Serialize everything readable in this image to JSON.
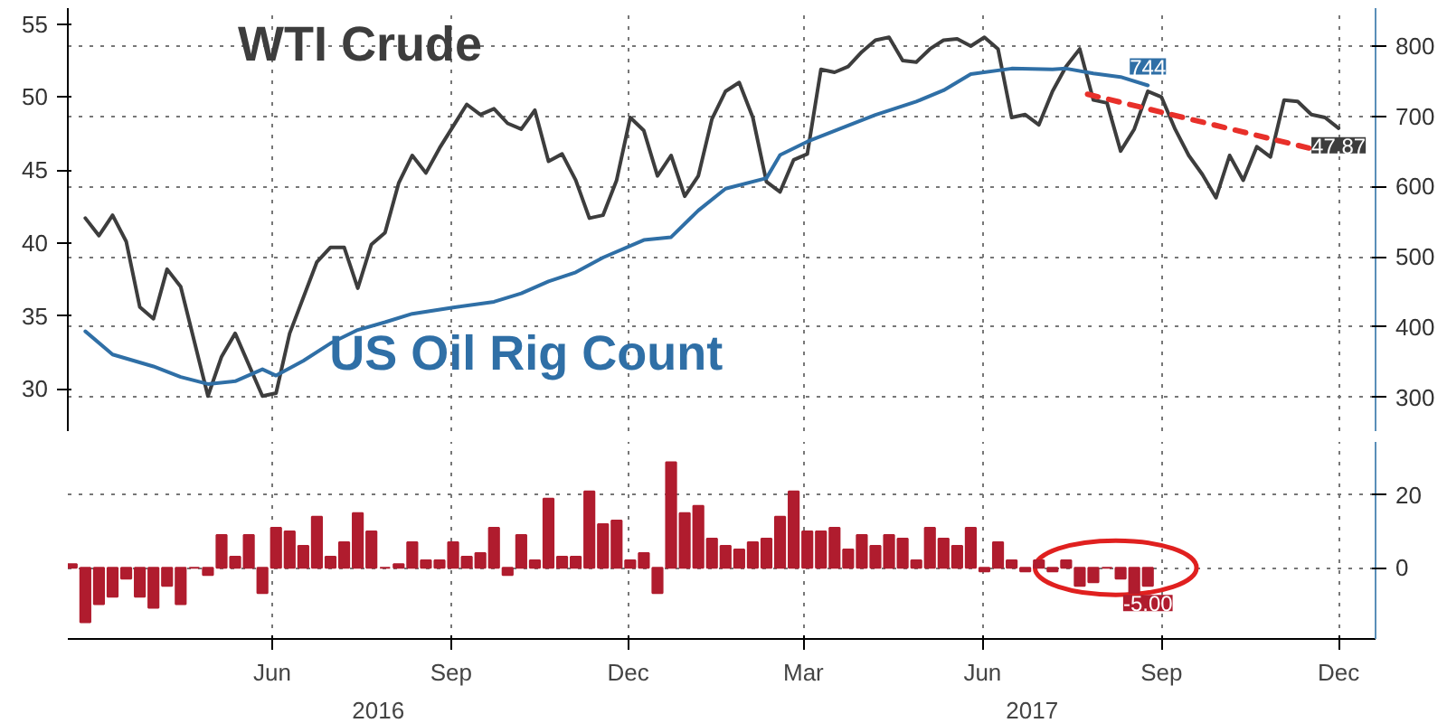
{
  "chart_data": [
    {
      "type": "line",
      "xlim": [
        "2016-02-17",
        "2017-12-20"
      ],
      "xticks": [
        "2016-06-01",
        "2016-09-01",
        "2016-12-01",
        "2017-03-01",
        "2017-06-01",
        "2017-09-01",
        "2017-12-01"
      ],
      "ylim": [
        27.1,
        56.1
      ],
      "yticks": [
        30,
        35,
        40,
        45,
        50,
        55
      ],
      "y2lim": [
        252,
        854
      ],
      "y2ticks": [
        300,
        400,
        500,
        600,
        700,
        800
      ],
      "tick_labels": "y",
      "series": [
        {
          "name": "WTI Crude",
          "color": "#3d3d3d",
          "x": [
            "2016-02-26",
            "2016-03-04",
            "2016-03-11",
            "2016-03-18",
            "2016-03-25",
            "2016-04-01",
            "2016-04-08",
            "2016-04-15",
            "2016-04-29",
            "2016-05-06",
            "2016-05-13",
            "2016-05-27",
            "2016-06-03",
            "2016-06-10",
            "2016-06-24",
            "2016-07-01",
            "2016-07-08",
            "2016-07-15",
            "2016-07-22",
            "2016-07-29",
            "2016-08-05",
            "2016-08-12",
            "2016-08-19",
            "2016-08-26",
            "2016-09-09",
            "2016-09-16",
            "2016-09-23",
            "2016-09-30",
            "2016-10-07",
            "2016-10-14",
            "2016-10-21",
            "2016-10-28",
            "2016-11-04",
            "2016-11-11",
            "2016-11-18",
            "2016-11-25",
            "2016-12-02",
            "2016-12-09",
            "2016-12-16",
            "2016-12-23",
            "2016-12-30",
            "2017-01-06",
            "2017-01-13",
            "2017-01-20",
            "2017-01-27",
            "2017-02-03",
            "2017-02-10",
            "2017-02-17",
            "2017-02-24",
            "2017-03-03",
            "2017-03-10",
            "2017-03-17",
            "2017-03-24",
            "2017-03-31",
            "2017-04-07",
            "2017-04-14",
            "2017-04-21",
            "2017-04-28",
            "2017-05-05",
            "2017-05-12",
            "2017-05-19",
            "2017-05-26",
            "2017-06-02",
            "2017-06-09",
            "2017-06-16",
            "2017-06-23",
            "2017-06-30",
            "2017-07-07",
            "2017-07-14",
            "2017-07-21",
            "2017-07-28",
            "2017-08-04",
            "2017-08-11",
            "2017-08-18",
            "2017-08-25",
            "2017-09-01",
            "2017-09-08",
            "2017-09-15",
            "2017-09-22",
            "2017-09-29",
            "2017-10-06",
            "2017-10-13",
            "2017-10-20",
            "2017-10-27",
            "2017-11-03",
            "2017-11-10",
            "2017-11-17",
            "2017-11-24",
            "2017-12-01"
          ],
          "values": [
            41.7,
            40.5,
            41.9,
            40.1,
            35.6,
            34.8,
            38.2,
            37.0,
            29.5,
            32.2,
            33.8,
            29.5,
            29.7,
            33.8,
            38.7,
            39.7,
            39.7,
            36.9,
            39.9,
            40.7,
            44.1,
            46.0,
            44.8,
            46.5,
            49.5,
            48.8,
            49.2,
            48.2,
            47.8,
            49.1,
            45.6,
            46.1,
            44.3,
            41.7,
            41.9,
            44.3,
            48.6,
            47.7,
            44.6,
            46.0,
            43.2,
            44.6,
            48.5,
            50.4,
            51.0,
            48.6,
            44.2,
            43.5,
            45.7,
            46.1,
            51.9,
            51.7,
            52.1,
            53.1,
            53.9,
            54.1,
            52.5,
            52.4,
            53.3,
            53.9,
            54.0,
            53.5,
            54.1,
            53.3,
            48.6,
            48.8,
            48.1,
            50.4,
            52.1,
            53.3,
            49.8,
            49.6,
            46.3,
            47.8,
            50.4,
            50.0,
            47.8,
            46.0,
            44.7,
            43.1,
            46.0,
            44.3,
            46.6,
            45.9,
            49.8,
            49.7,
            48.8,
            48.6,
            47.87
          ],
          "value_labels": [
            null,
            null,
            null,
            null,
            null,
            null,
            null,
            null,
            null,
            null,
            null,
            null,
            null,
            null,
            null,
            null,
            null,
            null,
            null,
            null,
            null,
            null,
            null,
            null,
            null,
            null,
            null,
            null,
            null,
            null,
            null,
            null,
            null,
            null,
            null,
            null,
            null,
            null,
            null,
            null,
            null,
            null,
            null,
            null,
            null,
            null,
            null,
            null,
            null,
            null,
            null,
            null,
            null,
            null,
            null,
            null,
            null,
            null,
            null,
            null,
            null,
            null,
            null,
            null,
            null,
            null,
            null,
            null,
            null,
            null,
            null,
            null,
            null,
            null,
            null,
            null,
            null,
            null,
            null,
            null,
            null,
            null,
            null,
            null,
            null,
            null,
            null,
            null,
            "47.87"
          ]
        },
        {
          "name": "US Oil Rig Count",
          "color": "#2f6fa6",
          "axis": "y2",
          "x": [
            "2016-02-26",
            "2016-03-11",
            "2016-04-01",
            "2016-04-15",
            "2016-04-29",
            "2016-05-13",
            "2016-05-27",
            "2016-06-03",
            "2016-06-17",
            "2016-07-01",
            "2016-07-15",
            "2016-07-29",
            "2016-08-12",
            "2016-09-02",
            "2016-09-23",
            "2016-10-07",
            "2016-10-21",
            "2016-11-04",
            "2016-11-18",
            "2016-12-09",
            "2016-12-23",
            "2017-01-06",
            "2017-01-20",
            "2017-02-10",
            "2017-02-17",
            "2017-03-03",
            "2017-03-24",
            "2017-04-07",
            "2017-04-28",
            "2017-05-12",
            "2017-05-26",
            "2017-06-16",
            "2017-07-07",
            "2017-07-14",
            "2017-07-28",
            "2017-08-11",
            "2017-08-25"
          ],
          "values": [
            394,
            361,
            344,
            329,
            319,
            323,
            340,
            331,
            352,
            377,
            396,
            407,
            419,
            428,
            436,
            448,
            465,
            478,
            499,
            524,
            528,
            566,
            597,
            612,
            645,
            664,
            687,
            702,
            721,
            737,
            760,
            768,
            767,
            768,
            761,
            756,
            744
          ],
          "value_labels": [
            null,
            null,
            null,
            null,
            null,
            null,
            null,
            null,
            null,
            null,
            null,
            null,
            null,
            null,
            null,
            null,
            null,
            null,
            null,
            null,
            null,
            null,
            null,
            null,
            null,
            null,
            null,
            null,
            null,
            null,
            null,
            null,
            null,
            null,
            null,
            null,
            "744"
          ]
        },
        {
          "type": "line",
          "color": "#e8302a",
          "line_style": "dashed",
          "x": [
            "2017-07-25",
            "2017-11-16"
          ],
          "values": [
            50.2,
            46.5
          ]
        }
      ],
      "grid": true
    },
    {
      "type": "bar",
      "xlim": [
        "2016-02-17",
        "2017-12-20"
      ],
      "xticks": [
        {
          "value": "2016-06-01",
          "label": "Jun"
        },
        {
          "value": "2016-09-01",
          "label": "Sep"
        },
        {
          "value": "2016-12-01",
          "label": "Dec"
        },
        {
          "value": "2017-03-01",
          "label": "Mar"
        },
        {
          "value": "2017-06-01",
          "label": "Jun"
        },
        {
          "value": "2017-09-01",
          "label": "Sep"
        },
        {
          "value": "2017-12-01",
          "label": "Dec"
        }
      ],
      "y2lim": [
        -19.6,
        34.6
      ],
      "y2ticks": [
        0,
        20
      ],
      "grid": true,
      "x": [
        "2016-02-19",
        "2016-02-26",
        "2016-03-04",
        "2016-03-11",
        "2016-03-18",
        "2016-03-25",
        "2016-04-01",
        "2016-04-08",
        "2016-04-15",
        "2016-04-22",
        "2016-04-29",
        "2016-05-06",
        "2016-05-13",
        "2016-05-20",
        "2016-05-27",
        "2016-06-03",
        "2016-06-10",
        "2016-06-17",
        "2016-06-24",
        "2016-07-01",
        "2016-07-08",
        "2016-07-15",
        "2016-07-22",
        "2016-07-29",
        "2016-08-05",
        "2016-08-12",
        "2016-08-19",
        "2016-08-26",
        "2016-09-02",
        "2016-09-09",
        "2016-09-16",
        "2016-09-23",
        "2016-09-30",
        "2016-10-07",
        "2016-10-14",
        "2016-10-21",
        "2016-10-28",
        "2016-11-04",
        "2016-11-11",
        "2016-11-18",
        "2016-11-25",
        "2016-12-02",
        "2016-12-09",
        "2016-12-16",
        "2016-12-23",
        "2016-12-30",
        "2017-01-06",
        "2017-01-13",
        "2017-01-20",
        "2017-01-27",
        "2017-02-03",
        "2017-02-10",
        "2017-02-17",
        "2017-02-24",
        "2017-03-03",
        "2017-03-10",
        "2017-03-17",
        "2017-03-24",
        "2017-03-31",
        "2017-04-07",
        "2017-04-14",
        "2017-04-21",
        "2017-04-28",
        "2017-05-05",
        "2017-05-12",
        "2017-05-19",
        "2017-05-26",
        "2017-06-02",
        "2017-06-09",
        "2017-06-16",
        "2017-06-23",
        "2017-06-30",
        "2017-07-07",
        "2017-07-14",
        "2017-07-21",
        "2017-07-28",
        "2017-08-04",
        "2017-08-11",
        "2017-08-18",
        "2017-08-25"
      ],
      "series": [
        {
          "color": "#b01c2e",
          "axis": "y2",
          "values": [
            1,
            -15,
            -10,
            -8,
            -3,
            -8,
            -11,
            -5,
            -10,
            0,
            -2,
            9,
            3,
            9,
            -7,
            11,
            10,
            6,
            14,
            3,
            7,
            15,
            10,
            0,
            1,
            7,
            2,
            2,
            7,
            3,
            4,
            11,
            -2,
            9,
            2,
            19,
            3,
            3,
            21,
            12,
            13,
            2,
            4,
            -7,
            29,
            15,
            17,
            8,
            6,
            5,
            7,
            8,
            14,
            21,
            10,
            10,
            11,
            5,
            9,
            6,
            9,
            8,
            2,
            11,
            8,
            6,
            11,
            -1,
            7,
            2,
            -1,
            2,
            -1,
            2,
            -5,
            -4,
            0,
            -3,
            -7,
            -5
          ],
          "value_labels": [
            null,
            null,
            null,
            null,
            null,
            null,
            null,
            null,
            null,
            null,
            null,
            null,
            null,
            null,
            null,
            null,
            null,
            null,
            null,
            null,
            null,
            null,
            null,
            null,
            null,
            null,
            null,
            null,
            null,
            null,
            null,
            null,
            null,
            null,
            null,
            null,
            null,
            null,
            null,
            null,
            null,
            null,
            null,
            null,
            null,
            null,
            null,
            null,
            null,
            null,
            null,
            null,
            null,
            null,
            null,
            null,
            null,
            null,
            null,
            null,
            null,
            null,
            null,
            null,
            null,
            null,
            null,
            null,
            null,
            null,
            null,
            null,
            null,
            null,
            null,
            null,
            null,
            null,
            null,
            "-5.00"
          ]
        }
      ],
      "annotations": [
        "2016",
        "2017"
      ]
    }
  ]
}
